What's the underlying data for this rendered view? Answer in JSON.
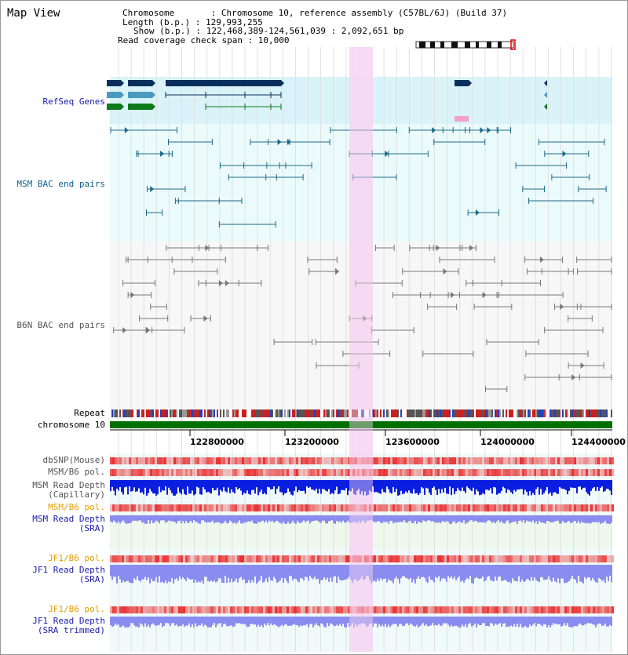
{
  "header": {
    "title": "Map View",
    "chromosome_line": "Chromosome       : Chromosome 10, reference assembly (C57BL/6J) (Build 37)",
    "length_line": "Length (b.p.) : 129,993,255",
    "show_line": "Show (b.p.) : 122,468,389-124,561,039 : 2,092,651 bp",
    "coverage_line": "Read coverage check span : 10,000"
  },
  "tracks": {
    "refseq": "RefSeq Genes",
    "msm_bac": "MSM BAC end pairs",
    "b6n_bac": "B6N BAC end pairs",
    "repeat": "Repeat",
    "chromosome": "chromosome 10",
    "dbsnp": "dbSNP(Mouse)",
    "msm_b6_pol1": "MSM/B6 pol.",
    "msm_read_depth_cap_1": "MSM Read Depth",
    "msm_read_depth_cap_2": "(Capillary)",
    "msm_b6_pol2": "MSM/B6 pol.",
    "msm_read_depth_sra_1": "MSM Read Depth",
    "msm_read_depth_sra_2": "(SRA)",
    "jf1_b6_pol1": "JF1/B6 pol.",
    "jf1_read_depth_sra_1": "JF1 Read Depth",
    "jf1_read_depth_sra_2": "(SRA)",
    "jf1_b6_pol2": "JF1/B6 pol.",
    "jf1_read_depth_trim_1": "JF1 Read Depth",
    "jf1_read_depth_trim_2": "(SRA trimmed)"
  },
  "ruler": {
    "ticks": [
      "122800000",
      "123200000",
      "123600000",
      "124000000",
      "124400000"
    ]
  },
  "colors": {
    "refseq_bg": "#d9f3f9",
    "msm_bg": "#ebfbfb",
    "b6n_bg": "#f7f7f7",
    "highlight": "#f6d7f2",
    "chromosome_bar": "#007000",
    "gene_dark": "#0a2f5c",
    "gene_mid": "#4a9abf",
    "gene_green": "#0d7a1c",
    "msm_pair": "#1c6a8a",
    "b6n_pair": "#777777",
    "depth_blue": "#0a1ee0",
    "depth_light": "#8a8cf0",
    "pol_red": "#e83030"
  }
}
